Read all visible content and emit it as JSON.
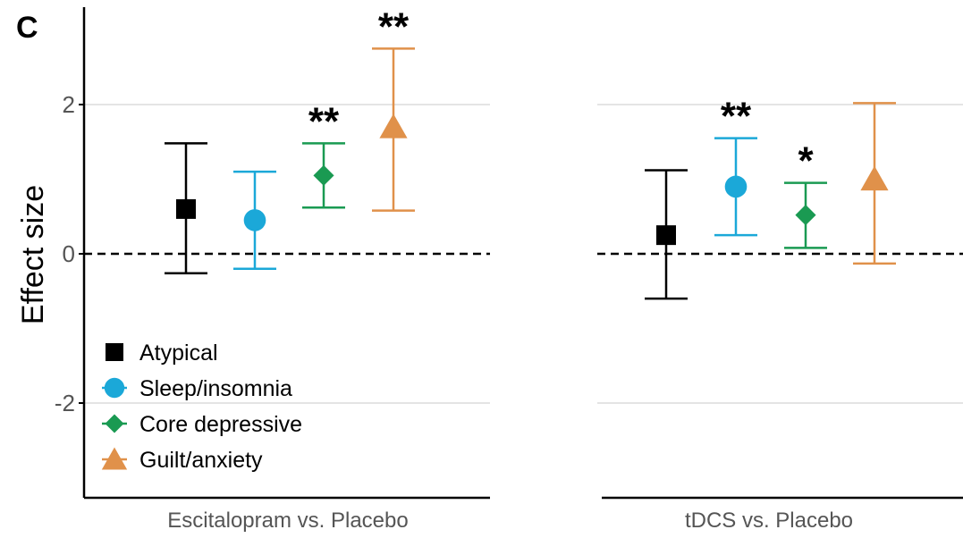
{
  "panel_label": "C",
  "chart_data": {
    "type": "scatter",
    "subtype": "forest-plot / point estimates with error bars",
    "ylabel": "Effect size",
    "ylim": [
      -3.2,
      3.4
    ],
    "yticks": [
      -2,
      0,
      2
    ],
    "ytick_labels": [
      "-2",
      "0",
      "2"
    ],
    "reference_line": {
      "y": 0,
      "style": "dashed"
    },
    "grid": "horizontal major lines only",
    "legend": {
      "placement": "bottom-left, inside left panel"
    },
    "series": [
      {
        "name": "Atypical",
        "color": "#000000",
        "marker": "square"
      },
      {
        "name": "Sleep/insomnia",
        "color": "#1ba8d8",
        "marker": "circle"
      },
      {
        "name": "Core depressive",
        "color": "#1a9a52",
        "marker": "diamond"
      },
      {
        "name": "Guilt/anxiety",
        "color": "#e0914a",
        "marker": "triangle"
      }
    ],
    "panels": [
      {
        "xlabel": "Escitalopram vs. Placebo",
        "points": [
          {
            "series": "Atypical",
            "estimate": 0.6,
            "lower": -0.26,
            "upper": 1.48,
            "significance": ""
          },
          {
            "series": "Sleep/insomnia",
            "estimate": 0.45,
            "lower": -0.2,
            "upper": 1.1,
            "significance": ""
          },
          {
            "series": "Core depressive",
            "estimate": 1.05,
            "lower": 0.62,
            "upper": 1.48,
            "significance": "**"
          },
          {
            "series": "Guilt/anxiety",
            "estimate": 1.7,
            "lower": 0.58,
            "upper": 2.75,
            "significance": "**"
          }
        ]
      },
      {
        "xlabel": "tDCS vs. Placebo",
        "points": [
          {
            "series": "Atypical",
            "estimate": 0.25,
            "lower": -0.6,
            "upper": 1.12,
            "significance": ""
          },
          {
            "series": "Sleep/insomnia",
            "estimate": 0.9,
            "lower": 0.25,
            "upper": 1.55,
            "significance": "**"
          },
          {
            "series": "Core depressive",
            "estimate": 0.52,
            "lower": 0.08,
            "upper": 0.95,
            "significance": "*"
          },
          {
            "series": "Guilt/anxiety",
            "estimate": 1.0,
            "lower": -0.13,
            "upper": 2.02,
            "significance": ""
          }
        ]
      }
    ]
  }
}
